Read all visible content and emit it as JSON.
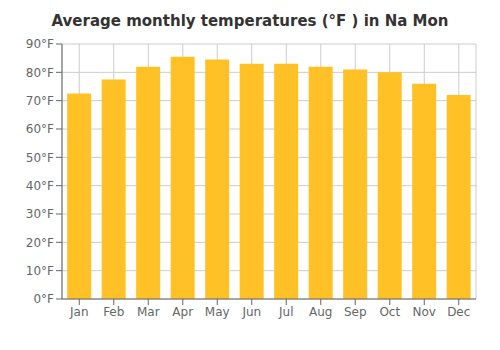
{
  "chart_data": {
    "type": "bar",
    "title": "Average monthly temperatures (°F ) in Na Mon",
    "categories": [
      "Jan",
      "Feb",
      "Mar",
      "Apr",
      "May",
      "Jun",
      "Jul",
      "Aug",
      "Sep",
      "Oct",
      "Nov",
      "Dec"
    ],
    "values": [
      72.5,
      77.5,
      82,
      85.5,
      84.5,
      83,
      83,
      82,
      81,
      80,
      76,
      72
    ],
    "color": "#FFC125",
    "ylim": [
      0,
      90
    ],
    "yticks": [
      {
        "value": 0,
        "label": "0°F"
      },
      {
        "value": 10,
        "label": "10°F"
      },
      {
        "value": 20,
        "label": "20°F"
      },
      {
        "value": 30,
        "label": "30°F"
      },
      {
        "value": 40,
        "label": "40°F"
      },
      {
        "value": 50,
        "label": "50°F"
      },
      {
        "value": 60,
        "label": "60°F"
      },
      {
        "value": 70,
        "label": "70°F"
      },
      {
        "value": 80,
        "label": "80°F"
      },
      {
        "value": 90,
        "label": "90°F"
      }
    ],
    "grid": true
  }
}
